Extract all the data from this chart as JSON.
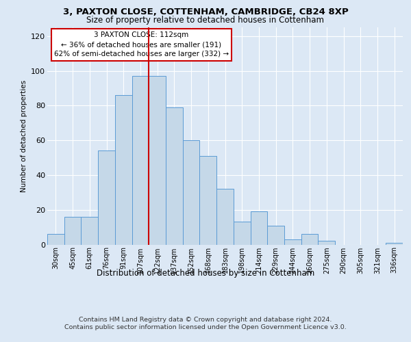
{
  "title1": "3, PAXTON CLOSE, COTTENHAM, CAMBRIDGE, CB24 8XP",
  "title2": "Size of property relative to detached houses in Cottenham",
  "xlabel": "Distribution of detached houses by size in Cottenham",
  "ylabel": "Number of detached properties",
  "categories": [
    "30sqm",
    "45sqm",
    "61sqm",
    "76sqm",
    "91sqm",
    "107sqm",
    "122sqm",
    "137sqm",
    "152sqm",
    "168sqm",
    "183sqm",
    "198sqm",
    "214sqm",
    "229sqm",
    "244sqm",
    "260sqm",
    "275sqm",
    "290sqm",
    "305sqm",
    "321sqm",
    "336sqm"
  ],
  "values": [
    6,
    16,
    16,
    54,
    86,
    97,
    97,
    79,
    60,
    51,
    32,
    13,
    19,
    11,
    3,
    6,
    2,
    0,
    0,
    0,
    1
  ],
  "bar_color": "#c5d8e8",
  "bar_edge_color": "#5b9bd5",
  "vline_color": "#cc0000",
  "annotation_text": "3 PAXTON CLOSE: 112sqm\n← 36% of detached houses are smaller (191)\n62% of semi-detached houses are larger (332) →",
  "annotation_box_color": "white",
  "annotation_box_edge_color": "#cc0000",
  "ylim": [
    0,
    125
  ],
  "yticks": [
    0,
    20,
    40,
    60,
    80,
    100,
    120
  ],
  "footer1": "Contains HM Land Registry data © Crown copyright and database right 2024.",
  "footer2": "Contains public sector information licensed under the Open Government Licence v3.0.",
  "bg_color": "#dce8f5",
  "plot_bg_color": "#dce8f5"
}
